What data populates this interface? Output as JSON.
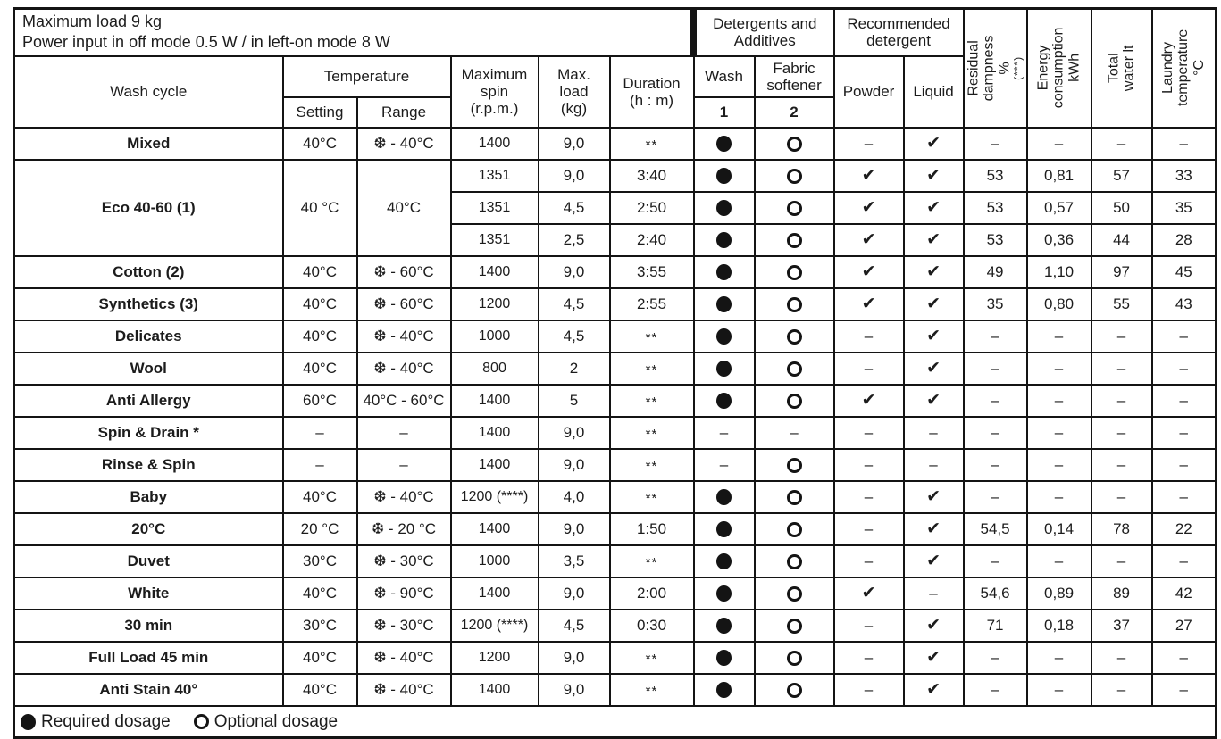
{
  "info": {
    "line1": "Maximum load 9 kg",
    "line2": "Power input in off mode 0.5 W / in left-on mode 8 W"
  },
  "header": {
    "wash_cycle": "Wash cycle",
    "temperature": "Temperature",
    "setting": "Setting",
    "range": "Range",
    "max_spin": "Maximum\nspin\n(r.p.m.)",
    "max_load": "Max.\nload\n(kg)",
    "duration": "Duration\n(h : m)",
    "detergents_additives": "Detergents and\nAdditives",
    "wash": "Wash",
    "fabric_softener": "Fabric\nsoftener",
    "wash_number": "1",
    "softener_number": "2",
    "recommended_detergent": "Recommended\ndetergent",
    "powder": "Powder",
    "liquid": "Liquid",
    "residual_dampness": "Residual\ndampness %",
    "residual_dampness_note": "(***)",
    "energy_consumption": "Energy\nconsumption\nkWh",
    "total_water": "Total water lt",
    "laundry_temperature": "Laundry\ntemperature\n°C"
  },
  "symbols": {
    "check": "✔",
    "dash": "–",
    "stars": "**"
  },
  "legend": {
    "required": "Required dosage",
    "optional": "Optional dosage"
  },
  "colors": {
    "ink": "#141414",
    "background": "#ffffff"
  },
  "rows": [
    {
      "cycle": "Mixed",
      "span": 1,
      "setting": "40°C",
      "range": "❆ - 40°C",
      "spin": "1400",
      "load": "9,0",
      "duration": "**",
      "wash": "filled",
      "softener": "open",
      "powder": "dash",
      "liquid": "check",
      "dampness": "–",
      "energy": "–",
      "water": "–",
      "laundry": "–"
    },
    {
      "cycle": "Eco 40-60 (1)",
      "span": 3,
      "setting": "40 °C",
      "range": "40°C",
      "spin": "1351",
      "load": "9,0",
      "duration": "3:40",
      "wash": "filled",
      "softener": "open",
      "powder": "check",
      "liquid": "check",
      "dampness": "53",
      "energy": "0,81",
      "water": "57",
      "laundry": "33"
    },
    {
      "cont": true,
      "spin": "1351",
      "load": "4,5",
      "duration": "2:50",
      "wash": "filled",
      "softener": "open",
      "powder": "check",
      "liquid": "check",
      "dampness": "53",
      "energy": "0,57",
      "water": "50",
      "laundry": "35"
    },
    {
      "cont": true,
      "spin": "1351",
      "load": "2,5",
      "duration": "2:40",
      "wash": "filled",
      "softener": "open",
      "powder": "check",
      "liquid": "check",
      "dampness": "53",
      "energy": "0,36",
      "water": "44",
      "laundry": "28"
    },
    {
      "cycle": "Cotton (2)",
      "span": 1,
      "setting": "40°C",
      "range": "❆ - 60°C",
      "spin": "1400",
      "load": "9,0",
      "duration": "3:55",
      "wash": "filled",
      "softener": "open",
      "powder": "check",
      "liquid": "check",
      "dampness": "49",
      "energy": "1,10",
      "water": "97",
      "laundry": "45"
    },
    {
      "cycle": "Synthetics (3)",
      "span": 1,
      "setting": "40°C",
      "range": "❆ - 60°C",
      "spin": "1200",
      "load": "4,5",
      "duration": "2:55",
      "wash": "filled",
      "softener": "open",
      "powder": "check",
      "liquid": "check",
      "dampness": "35",
      "energy": "0,80",
      "water": "55",
      "laundry": "43"
    },
    {
      "cycle": "Delicates",
      "span": 1,
      "setting": "40°C",
      "range": "❆ - 40°C",
      "spin": "1000",
      "load": "4,5",
      "duration": "**",
      "wash": "filled",
      "softener": "open",
      "powder": "dash",
      "liquid": "check",
      "dampness": "–",
      "energy": "–",
      "water": "–",
      "laundry": "–"
    },
    {
      "cycle": "Wool",
      "span": 1,
      "setting": "40°C",
      "range": "❆ - 40°C",
      "spin": "800",
      "load": "2",
      "duration": "**",
      "wash": "filled",
      "softener": "open",
      "powder": "dash",
      "liquid": "check",
      "dampness": "–",
      "energy": "–",
      "water": "–",
      "laundry": "–"
    },
    {
      "cycle": "Anti Allergy",
      "span": 1,
      "setting": "60°C",
      "range": "40°C - 60°C",
      "spin": "1400",
      "load": "5",
      "duration": "**",
      "wash": "filled",
      "softener": "open",
      "powder": "check",
      "liquid": "check",
      "dampness": "–",
      "energy": "–",
      "water": "–",
      "laundry": "–"
    },
    {
      "cycle": "Spin & Drain *",
      "span": 1,
      "setting": "–",
      "range": "–",
      "spin": "1400",
      "load": "9,0",
      "duration": "**",
      "wash": "dash",
      "softener": "dash",
      "powder": "dash",
      "liquid": "dash",
      "dampness": "–",
      "energy": "–",
      "water": "–",
      "laundry": "–"
    },
    {
      "cycle": "Rinse & Spin",
      "span": 1,
      "setting": "–",
      "range": "–",
      "spin": "1400",
      "load": "9,0",
      "duration": "**",
      "wash": "dash",
      "softener": "open",
      "powder": "dash",
      "liquid": "dash",
      "dampness": "–",
      "energy": "–",
      "water": "–",
      "laundry": "–"
    },
    {
      "cycle": "Baby",
      "span": 1,
      "setting": "40°C",
      "range": "❆ - 40°C",
      "spin": "1200 (****)",
      "load": "4,0",
      "duration": "**",
      "wash": "filled",
      "softener": "open",
      "powder": "dash",
      "liquid": "check",
      "dampness": "–",
      "energy": "–",
      "water": "–",
      "laundry": "–"
    },
    {
      "cycle": "20°C",
      "span": 1,
      "setting": "20 °C",
      "range": "❆ - 20 °C",
      "spin": "1400",
      "load": "9,0",
      "duration": "1:50",
      "wash": "filled",
      "softener": "open",
      "powder": "dash",
      "liquid": "check",
      "dampness": "54,5",
      "energy": "0,14",
      "water": "78",
      "laundry": "22"
    },
    {
      "cycle": "Duvet",
      "span": 1,
      "setting": "30°C",
      "range": "❆ - 30°C",
      "spin": "1000",
      "load": "3,5",
      "duration": "**",
      "wash": "filled",
      "softener": "open",
      "powder": "dash",
      "liquid": "check",
      "dampness": "–",
      "energy": "–",
      "water": "–",
      "laundry": "–"
    },
    {
      "cycle": "White",
      "span": 1,
      "setting": "40°C",
      "range": "❆ - 90°C",
      "spin": "1400",
      "load": "9,0",
      "duration": "2:00",
      "wash": "filled",
      "softener": "open",
      "powder": "check",
      "liquid": "dash",
      "dampness": "54,6",
      "energy": "0,89",
      "water": "89",
      "laundry": "42"
    },
    {
      "cycle": "30 min",
      "span": 1,
      "setting": "30°C",
      "range": "❆ - 30°C",
      "spin": "1200 (****)",
      "load": "4,5",
      "duration": "0:30",
      "wash": "filled",
      "softener": "open",
      "powder": "dash",
      "liquid": "check",
      "dampness": "71",
      "energy": "0,18",
      "water": "37",
      "laundry": "27"
    },
    {
      "cycle": "Full Load 45 min",
      "span": 1,
      "setting": "40°C",
      "range": "❆ - 40°C",
      "spin": "1200",
      "load": "9,0",
      "duration": "**",
      "wash": "filled",
      "softener": "open",
      "powder": "dash",
      "liquid": "check",
      "dampness": "–",
      "energy": "–",
      "water": "–",
      "laundry": "–"
    },
    {
      "cycle": "Anti Stain 40°",
      "span": 1,
      "setting": "40°C",
      "range": "❆ - 40°C",
      "spin": "1400",
      "load": "9,0",
      "duration": "**",
      "wash": "filled",
      "softener": "open",
      "powder": "dash",
      "liquid": "check",
      "dampness": "–",
      "energy": "–",
      "water": "–",
      "laundry": "–"
    }
  ]
}
